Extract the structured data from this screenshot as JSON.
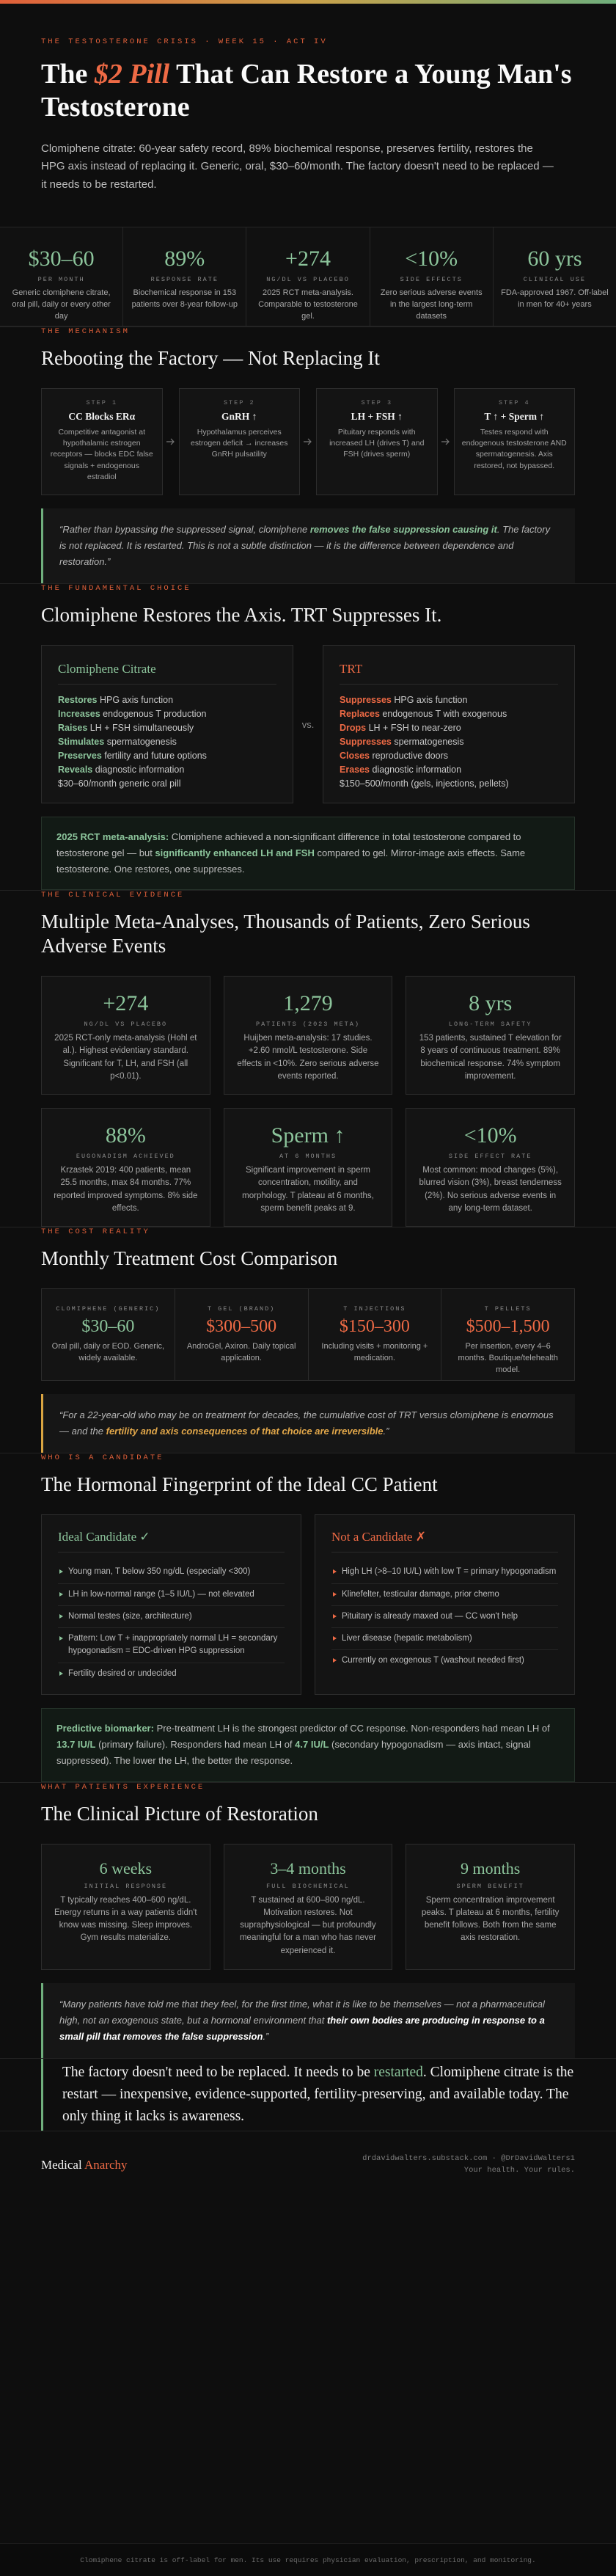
{
  "header": {
    "kicker": "THE TESTOSTERONE CRISIS · WEEK 15 · ACT IV",
    "title": [
      "The ",
      "$2 Pill",
      " That Can Restore a Young Man's Testosterone"
    ],
    "subtitle": "Clomiphene citrate: 60-year safety record, 89% biochemical response, preserves fertility, restores the HPG axis instead of replacing it. Generic, oral, $30–60/month. The factory doesn't need to be replaced — it needs to be restarted."
  },
  "stats": [
    {
      "value": "$30–60",
      "label": "PER MONTH",
      "text": "Generic clomiphene citrate, oral pill, daily or every other day"
    },
    {
      "value": "89%",
      "label": "RESPONSE RATE",
      "text": "Biochemical response in 153 patients over 8-year follow-up"
    },
    {
      "value": "+274",
      "label": "NG/DL VS PLACEBO",
      "text": "2025 RCT meta-analysis. Comparable to testosterone gel."
    },
    {
      "value": "<10%",
      "label": "SIDE EFFECTS",
      "text": "Zero serious adverse events in the largest long-term datasets"
    },
    {
      "value": "60 yrs",
      "label": "CLINICAL USE",
      "text": "FDA-approved 1967. Off-label in men for 40+ years"
    }
  ],
  "mechanism": {
    "kicker": "THE MECHANISM",
    "heading": "Rebooting the Factory — Not Replacing It",
    "steps": [
      {
        "step": "STEP 1",
        "title": "CC Blocks ERα",
        "text": "Competitive antagonist at hypothalamic estrogen receptors — blocks EDC false signals + endogenous estradiol"
      },
      {
        "step": "STEP 2",
        "title": "GnRH ↑",
        "text": "Hypothalamus perceives estrogen deficit → increases GnRH pulsatility"
      },
      {
        "step": "STEP 3",
        "title": "LH + FSH ↑",
        "text": "Pituitary responds with increased LH (drives T) and FSH (drives sperm)"
      },
      {
        "step": "STEP 4",
        "title": "T ↑ + Sperm ↑",
        "text": "Testes respond with endogenous testosterone AND spermatogenesis. Axis restored, not bypassed."
      }
    ],
    "quote": [
      "“Rather than bypassing the suppressed signal, clomiphene ",
      "removes the false suppression causing it",
      ". The factory is not replaced. It is restarted. This is not a subtle distinction — it is the difference between dependence and restoration.”"
    ]
  },
  "choice": {
    "kicker": "THE FUNDAMENTAL CHOICE",
    "heading": "Clomiphene Restores the Axis. TRT Suppresses It.",
    "left": {
      "title": "Clomiphene Citrate",
      "items": [
        [
          "Restores",
          " HPG axis function"
        ],
        [
          "Increases",
          " endogenous T production"
        ],
        [
          "Raises",
          " LH + FSH simultaneously"
        ],
        [
          "Stimulates",
          " spermatogenesis"
        ],
        [
          "Preserves",
          " fertility and future options"
        ],
        [
          "Reveals",
          " diagnostic information"
        ],
        [
          "$30–60/month generic oral pill"
        ]
      ]
    },
    "vs": "vs.",
    "right": {
      "title": "TRT",
      "items": [
        [
          "Suppresses",
          " HPG axis function"
        ],
        [
          "Replaces",
          " endogenous T with exogenous"
        ],
        [
          "Drops",
          " LH + FSH to near-zero"
        ],
        [
          "Suppresses",
          " spermatogenesis"
        ],
        [
          "Closes",
          " reproductive doors"
        ],
        [
          "Erases",
          " diagnostic information"
        ],
        [
          "$150–500/month (gels, injections, pellets)"
        ]
      ]
    },
    "note": [
      "2025 RCT meta-analysis:",
      " Clomiphene achieved a non-significant difference in total testosterone compared to testosterone gel — but ",
      "significantly enhanced LH and FSH",
      " compared to gel. Mirror-image axis effects. Same testosterone. One restores, one suppresses."
    ]
  },
  "evidence": {
    "kicker": "THE CLINICAL EVIDENCE",
    "heading": "Multiple Meta-Analyses, Thousands of Patients, Zero Serious Adverse Events",
    "cards": [
      {
        "value": "+274",
        "label": "NG/DL VS PLACEBO",
        "text": "2025 RCT-only meta-analysis (Hohl et al.). Highest evidentiary standard. Significant for T, LH, and FSH (all p<0.01)."
      },
      {
        "value": "1,279",
        "label": "PATIENTS (2023 META)",
        "text": "Huijben meta-analysis: 17 studies. +2.60 nmol/L testosterone. Side effects in <10%. Zero serious adverse events reported."
      },
      {
        "value": "8 yrs",
        "label": "LONG-TERM SAFETY",
        "text": "153 patients, sustained T elevation for 8 years of continuous treatment. 89% biochemical response. 74% symptom improvement."
      },
      {
        "value": "88%",
        "label": "EUGONADISM ACHIEVED",
        "text": "Krzastek 2019: 400 patients, mean 25.5 months, max 84 months. 77% reported improved symptoms. 8% side effects."
      },
      {
        "value": "Sperm ↑",
        "label": "AT 6 MONTHS",
        "text": "Significant improvement in sperm concentration, motility, and morphology. T plateau at 6 months, sperm benefit peaks at 9."
      },
      {
        "value": "<10%",
        "label": "SIDE EFFECT RATE",
        "text": "Most common: mood changes (5%), blurred vision (3%), breast tenderness (2%). No serious adverse events in any long-term dataset."
      }
    ]
  },
  "cost": {
    "kicker": "THE COST REALITY",
    "heading": "Monthly Treatment Cost Comparison",
    "items": [
      {
        "label": "CLOMIPHENE (GENERIC)",
        "value": "$30–60",
        "text": "Oral pill, daily or EOD. Generic, widely available."
      },
      {
        "label": "T GEL (BRAND)",
        "value": "$300–500",
        "text": "AndroGel, Axiron. Daily topical application."
      },
      {
        "label": "T INJECTIONS",
        "value": "$150–300",
        "text": "Including visits + monitoring + medication."
      },
      {
        "label": "T PELLETS",
        "value": "$500–1,500",
        "text": "Per insertion, every 4–6 months. Boutique/telehealth model."
      }
    ],
    "quote": [
      "“For a 22-year-old who may be on treatment for decades, the cumulative cost of TRT versus clomiphene is enormous — and the ",
      "fertility and axis consequences of that choice are irreversible",
      ".”"
    ]
  },
  "candidate": {
    "kicker": "WHO IS A CANDIDATE",
    "heading": "The Hormonal Fingerprint of the Ideal CC Patient",
    "ideal": {
      "title": "Ideal Candidate ✓",
      "items": [
        "Young man, T below 350 ng/dL (especially <300)",
        "LH in low-normal range (1–5 IU/L) — not elevated",
        "Normal testes (size, architecture)",
        "Pattern: Low T + inappropriately normal LH = secondary hypogonadism = EDC-driven HPG suppression",
        "Fertility desired or undecided"
      ]
    },
    "not": {
      "title": "Not a Candidate ✗",
      "items": [
        "High LH (>8–10 IU/L) with low T = primary hypogonadism",
        "Klinefelter, testicular damage, prior chemo",
        "Pituitary is already maxed out — CC won't help",
        "Liver disease (hepatic metabolism)",
        "Currently on exogenous T (washout needed first)"
      ]
    },
    "note": [
      "Predictive biomarker:",
      " Pre-treatment LH is the strongest predictor of CC response. Non-responders had mean LH of ",
      "13.7 IU/L",
      " (primary failure). Responders had mean LH of ",
      "4.7 IU/L",
      " (secondary hypogonadism — axis intact, signal suppressed). The lower the LH, the better the response."
    ]
  },
  "patients": {
    "kicker": "WHAT PATIENTS EXPERIENCE",
    "heading": "The Clinical Picture of Restoration",
    "cards": [
      {
        "value": "6 weeks",
        "label": "INITIAL RESPONSE",
        "text": "T typically reaches 400–600 ng/dL. Energy returns in a way patients didn't know was missing. Sleep improves. Gym results materialize."
      },
      {
        "value": "3–4 months",
        "label": "FULL BIOCHEMICAL",
        "text": "T sustained at 600–800 ng/dL. Motivation restores. Not supraphysiological — but profoundly meaningful for a man who has never experienced it."
      },
      {
        "value": "9 months",
        "label": "SPERM BENEFIT",
        "text": "Sperm concentration improvement peaks. T plateau at 6 months, fertility benefit follows. Both from the same axis restoration."
      }
    ],
    "quote": [
      "“Many patients have told me that they feel, for the first time, what it is like to be themselves — not a pharmaceutical high, not an exogenous state, but a hormonal environment that ",
      "their own bodies are producing in response to a small pill that removes the false suppression",
      ".”"
    ]
  },
  "closing": [
    "The factory doesn't need to be replaced. It needs to be ",
    "restarted",
    ". Clomiphene citrate is the restart — inexpensive, evidence-supported, fertility-preserving, and available today. The only thing it lacks is awareness."
  ],
  "footer": {
    "brand": [
      "Medical ",
      "Anarchy"
    ],
    "links": "drdavidwalters.substack.com · @DrDavidWalters1",
    "tagline": "Your health. Your rules.",
    "disclaimer": "Clomiphene citrate is off-label for men. Its use requires physician evaluation, prescription, and monitoring."
  }
}
